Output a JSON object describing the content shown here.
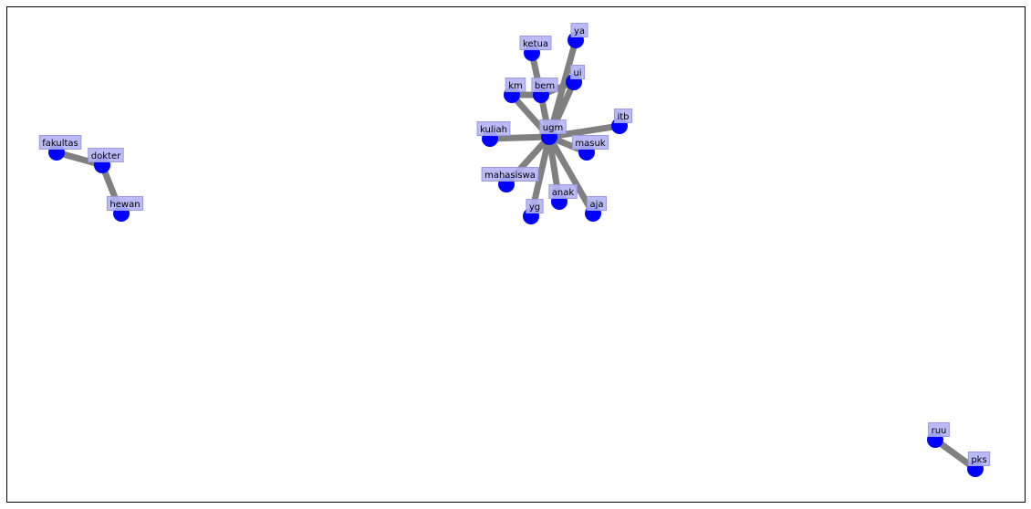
{
  "colors": {
    "node": "#0000ff",
    "edge": "#808080",
    "label_box": "#b3b3f5",
    "frame": "#000000"
  },
  "chart_data": {
    "type": "network",
    "title": "",
    "nodes": [
      {
        "id": "ugm"
      },
      {
        "id": "itb"
      },
      {
        "id": "masuk"
      },
      {
        "id": "aja"
      },
      {
        "id": "anak"
      },
      {
        "id": "yg"
      },
      {
        "id": "mahasiswa"
      },
      {
        "id": "kuliah"
      },
      {
        "id": "km"
      },
      {
        "id": "bem"
      },
      {
        "id": "ketua"
      },
      {
        "id": "ui"
      },
      {
        "id": "ya"
      },
      {
        "id": "fakultas"
      },
      {
        "id": "dokter"
      },
      {
        "id": "hewan"
      },
      {
        "id": "ruu"
      },
      {
        "id": "pks"
      }
    ],
    "edges": [
      [
        "ugm",
        "itb"
      ],
      [
        "ugm",
        "masuk"
      ],
      [
        "ugm",
        "aja"
      ],
      [
        "ugm",
        "anak"
      ],
      [
        "ugm",
        "yg"
      ],
      [
        "ugm",
        "mahasiswa"
      ],
      [
        "ugm",
        "kuliah"
      ],
      [
        "ugm",
        "km"
      ],
      [
        "ugm",
        "bem"
      ],
      [
        "ugm",
        "ui"
      ],
      [
        "ugm",
        "ya"
      ],
      [
        "bem",
        "ketua"
      ],
      [
        "km",
        "bem"
      ],
      [
        "bem",
        "ui"
      ],
      [
        "fakultas",
        "dokter"
      ],
      [
        "dokter",
        "hewan"
      ],
      [
        "ruu",
        "pks"
      ]
    ]
  }
}
